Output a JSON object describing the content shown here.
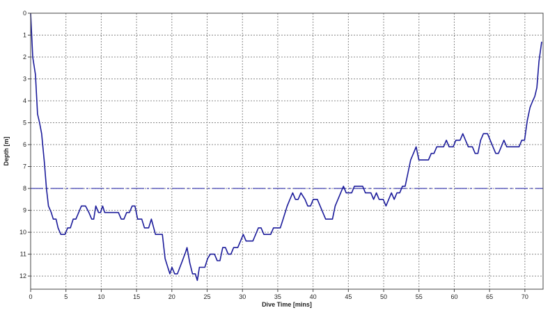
{
  "chart_data": {
    "type": "line",
    "title": "",
    "xlabel": "Dive Time [mins]",
    "ylabel": "Depth [m]",
    "xlim": [
      0,
      71
    ],
    "ylim": [
      12.6,
      0
    ],
    "y_inverted": true,
    "grid": true,
    "grid_style": "dashed",
    "x_ticks": [
      0,
      5,
      10,
      15,
      20,
      25,
      30,
      35,
      40,
      45,
      50,
      55,
      60,
      65,
      70
    ],
    "y_ticks": [
      0,
      1,
      2,
      3,
      4,
      5,
      6,
      7,
      8,
      9,
      10,
      11,
      12
    ],
    "reference_lines": [
      {
        "axis": "y",
        "value": 8,
        "style": "dash-dot",
        "color": "#2a2aa8"
      }
    ],
    "series": [
      {
        "color": "#1a1a9a",
        "points": [
          [
            0.0,
            0.0
          ],
          [
            0.3,
            2.0
          ],
          [
            0.7,
            2.8
          ],
          [
            1.0,
            4.6
          ],
          [
            1.3,
            5.0
          ],
          [
            1.6,
            5.5
          ],
          [
            2.0,
            6.8
          ],
          [
            2.3,
            8.0
          ],
          [
            2.6,
            8.8
          ],
          [
            3.0,
            9.1
          ],
          [
            3.3,
            9.4
          ],
          [
            3.7,
            9.4
          ],
          [
            4.0,
            9.8
          ],
          [
            4.4,
            10.1
          ],
          [
            5.0,
            10.1
          ],
          [
            5.4,
            9.8
          ],
          [
            5.8,
            9.8
          ],
          [
            6.2,
            9.4
          ],
          [
            6.6,
            9.4
          ],
          [
            7.0,
            9.1
          ],
          [
            7.4,
            8.8
          ],
          [
            8.0,
            8.8
          ],
          [
            8.5,
            9.1
          ],
          [
            8.9,
            9.4
          ],
          [
            9.2,
            9.4
          ],
          [
            9.5,
            8.8
          ],
          [
            9.9,
            9.1
          ],
          [
            10.2,
            9.1
          ],
          [
            10.5,
            8.8
          ],
          [
            10.8,
            9.1
          ],
          [
            12.8,
            9.1
          ],
          [
            13.2,
            9.4
          ],
          [
            13.6,
            9.4
          ],
          [
            14.0,
            9.1
          ],
          [
            14.4,
            9.1
          ],
          [
            14.8,
            8.8
          ],
          [
            15.2,
            8.8
          ],
          [
            15.6,
            9.4
          ],
          [
            16.2,
            9.4
          ],
          [
            16.6,
            9.8
          ],
          [
            17.2,
            9.8
          ],
          [
            17.6,
            9.4
          ],
          [
            18.2,
            10.1
          ],
          [
            19.2,
            10.1
          ],
          [
            19.6,
            11.2
          ],
          [
            20.0,
            11.6
          ],
          [
            20.3,
            11.9
          ],
          [
            20.6,
            11.6
          ],
          [
            21.0,
            11.9
          ],
          [
            21.4,
            11.9
          ],
          [
            22.0,
            11.4
          ],
          [
            22.6,
            10.9
          ],
          [
            22.8,
            10.7
          ],
          [
            23.2,
            11.4
          ],
          [
            23.6,
            11.9
          ],
          [
            24.0,
            11.9
          ],
          [
            24.3,
            12.2
          ],
          [
            24.6,
            11.6
          ],
          [
            25.4,
            11.6
          ],
          [
            25.8,
            11.2
          ],
          [
            26.2,
            11.0
          ],
          [
            26.8,
            11.0
          ],
          [
            27.2,
            11.3
          ],
          [
            27.6,
            11.3
          ],
          [
            28.0,
            10.7
          ],
          [
            28.4,
            10.7
          ],
          [
            28.8,
            11.0
          ],
          [
            29.2,
            11.0
          ],
          [
            29.6,
            10.7
          ],
          [
            30.2,
            10.7
          ],
          [
            30.6,
            10.4
          ],
          [
            31.0,
            10.1
          ],
          [
            31.4,
            10.4
          ],
          [
            32.4,
            10.4
          ],
          [
            32.8,
            10.1
          ],
          [
            33.2,
            9.8
          ],
          [
            33.6,
            9.8
          ],
          [
            34.0,
            10.1
          ],
          [
            35.0,
            10.1
          ],
          [
            35.4,
            9.8
          ],
          [
            36.4,
            9.8
          ],
          [
            36.8,
            9.4
          ],
          [
            37.4,
            8.8
          ],
          [
            37.8,
            8.5
          ],
          [
            38.2,
            8.2
          ],
          [
            38.6,
            8.5
          ],
          [
            39.0,
            8.5
          ],
          [
            39.4,
            8.2
          ],
          [
            40.0,
            8.5
          ],
          [
            40.4,
            8.8
          ],
          [
            40.8,
            8.8
          ],
          [
            41.2,
            8.5
          ],
          [
            41.8,
            8.5
          ],
          [
            42.2,
            8.8
          ],
          [
            42.6,
            9.1
          ],
          [
            43.0,
            9.4
          ],
          [
            44.0,
            9.4
          ],
          [
            44.4,
            8.8
          ],
          [
            44.8,
            8.5
          ],
          [
            45.2,
            8.2
          ],
          [
            45.6,
            7.9
          ],
          [
            46.0,
            8.2
          ],
          [
            46.8,
            8.2
          ],
          [
            47.2,
            7.9
          ],
          [
            48.4,
            7.9
          ],
          [
            48.8,
            8.2
          ],
          [
            49.6,
            8.2
          ],
          [
            50.0,
            8.5
          ],
          [
            50.4,
            8.2
          ],
          [
            50.8,
            8.5
          ],
          [
            51.4,
            8.5
          ],
          [
            51.8,
            8.8
          ],
          [
            52.2,
            8.5
          ],
          [
            52.6,
            8.2
          ],
          [
            53.0,
            8.5
          ],
          [
            53.4,
            8.2
          ],
          [
            53.8,
            8.2
          ],
          [
            54.2,
            7.9
          ],
          [
            54.6,
            7.9
          ],
          [
            55.0,
            7.3
          ],
          [
            55.4,
            6.7
          ],
          [
            55.8,
            6.4
          ],
          [
            56.2,
            6.1
          ],
          [
            56.6,
            6.7
          ],
          [
            58.0,
            6.7
          ],
          [
            58.4,
            6.4
          ],
          [
            58.8,
            6.4
          ],
          [
            59.2,
            6.1
          ],
          [
            60.2,
            6.1
          ],
          [
            60.6,
            5.8
          ],
          [
            61.0,
            6.1
          ],
          [
            61.6,
            6.1
          ],
          [
            62.0,
            5.8
          ],
          [
            62.6,
            5.8
          ],
          [
            63.0,
            5.5
          ],
          [
            63.4,
            5.8
          ],
          [
            63.8,
            6.1
          ],
          [
            64.4,
            6.1
          ],
          [
            64.8,
            6.4
          ],
          [
            65.2,
            6.4
          ],
          [
            65.6,
            5.8
          ],
          [
            66.0,
            5.5
          ],
          [
            66.6,
            5.5
          ],
          [
            67.0,
            5.8
          ],
          [
            67.4,
            6.1
          ],
          [
            67.8,
            6.4
          ],
          [
            68.2,
            6.4
          ],
          [
            68.6,
            6.1
          ],
          [
            69.0,
            5.8
          ],
          [
            69.4,
            6.1
          ],
          [
            71.2,
            6.1
          ],
          [
            71.6,
            5.8
          ],
          [
            72.0,
            5.8
          ],
          [
            72.4,
            4.9
          ],
          [
            72.8,
            4.3
          ],
          [
            73.2,
            4.0
          ],
          [
            73.5,
            3.8
          ],
          [
            73.8,
            3.4
          ],
          [
            74.1,
            2.2
          ],
          [
            74.5,
            1.3
          ]
        ]
      }
    ]
  }
}
